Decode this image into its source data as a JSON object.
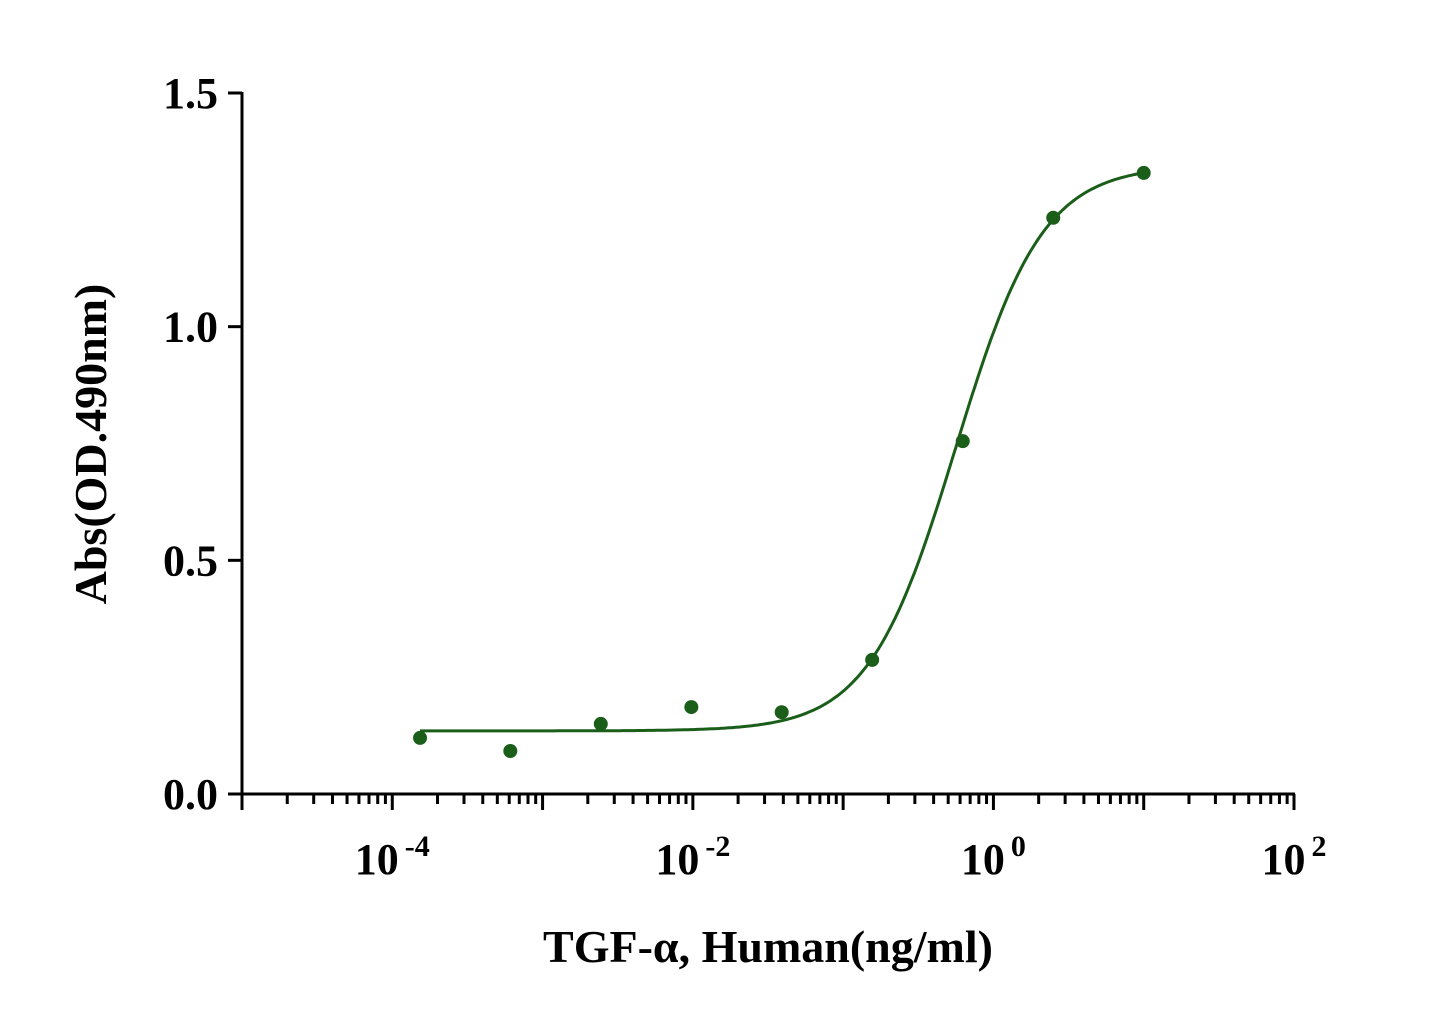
{
  "chart_data": {
    "type": "scatter",
    "title": "",
    "xlabel": "TGF-α, Human(ng/ml)",
    "ylabel": "Abs(OD.490nm)",
    "xscale": "log",
    "xlim": [
      1e-05,
      100
    ],
    "ylim": [
      0,
      1.5
    ],
    "grid": false,
    "x_ticks": [
      {
        "exp": -4,
        "base": "10",
        "sup": "-4"
      },
      {
        "exp": -2,
        "base": "10",
        "sup": "-2"
      },
      {
        "exp": 0,
        "base": "10",
        "sup": "0"
      },
      {
        "exp": 2,
        "base": "10",
        "sup": "2"
      }
    ],
    "y_ticks": [
      {
        "value": 0,
        "label": "0.0"
      },
      {
        "value": 0.5,
        "label": "0.5"
      },
      {
        "value": 1.0,
        "label": "1.0"
      },
      {
        "value": 1.5,
        "label": "1.5"
      }
    ],
    "series": [
      {
        "name": "TGF-α",
        "color": "#1a5e1a",
        "x": [
          0.000153,
          0.00061,
          0.00244,
          0.00977,
          0.039,
          0.156,
          0.625,
          2.5,
          10
        ],
        "y": [
          0.12,
          0.092,
          0.15,
          0.186,
          0.175,
          0.287,
          0.755,
          1.233,
          1.329
        ],
        "fit": {
          "model": "4PL",
          "bottom": 0.135,
          "top": 1.345,
          "ec50": 0.56,
          "hill": 1.5
        }
      }
    ]
  }
}
